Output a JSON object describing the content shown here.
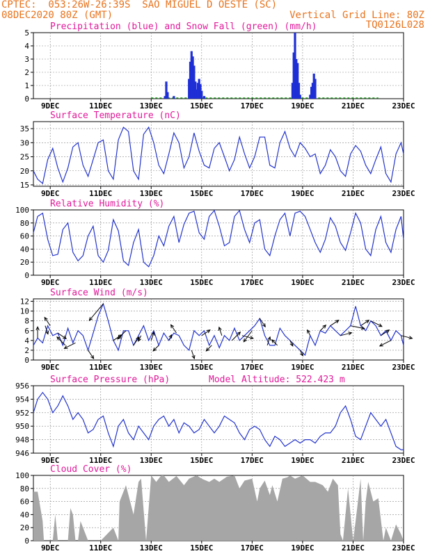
{
  "header": {
    "line1_left": "CPTEC:  053:26W-26:39S  SAO MIGUEL D OESTE (SC)",
    "line2_left": "08DEC2020 80Z (GMT)",
    "line2_right": "Vertical Grid Line: 80Z",
    "code": "TQ0126L028"
  },
  "colors": {
    "header": "#e8731c",
    "title": "#e0199a",
    "line": "#2233cc",
    "precip": "#1f2fd6",
    "snow": "#19a019",
    "cloud": "#a6a6a6",
    "grid": "#888888"
  },
  "x_axis": {
    "start_day": 8.333,
    "end_day": 23.0,
    "tick_days": [
      9,
      11,
      13,
      15,
      17,
      19,
      21,
      23
    ],
    "tick_labels": [
      "9DEC",
      "11DEC",
      "13DEC",
      "15DEC",
      "17DEC",
      "19DEC",
      "21DEC",
      "23DEC"
    ]
  },
  "chart_data": [
    {
      "type": "bar",
      "title": "Precipitation (blue) and Snow Fall (green) (mm/h)",
      "ylim": [
        0,
        5
      ],
      "yticks": [
        "0",
        "1",
        "2",
        "3",
        "4",
        "5"
      ],
      "series": [
        {
          "name": "Precipitation",
          "x": [
            13.55,
            13.6,
            13.65,
            13.9,
            14.5,
            14.55,
            14.6,
            14.65,
            14.7,
            14.75,
            14.8,
            14.85,
            14.9,
            14.95,
            15.0,
            15.1,
            18.6,
            18.65,
            18.7,
            18.75,
            18.8,
            18.85,
            18.9,
            19.3,
            19.35,
            19.4,
            19.45,
            19.5
          ],
          "values": [
            0.2,
            1.3,
            0.5,
            0.2,
            1.5,
            2.8,
            3.6,
            3.2,
            2.5,
            1.3,
            0.7,
            1.2,
            1.5,
            1.1,
            0.6,
            0.2,
            1.2,
            3.5,
            5.0,
            3.0,
            2.7,
            1.2,
            0.3,
            0.3,
            0.9,
            1.2,
            1.9,
            1.5
          ]
        },
        {
          "name": "Snow Fall",
          "values": []
        }
      ]
    },
    {
      "type": "line",
      "title": "Surface Temperature (nC)",
      "ylim": [
        14.5,
        37.5
      ],
      "yticks": [
        "15",
        "20",
        "25",
        "30",
        "35"
      ],
      "series": [
        {
          "name": "",
          "x": [
            8.333,
            8.5,
            8.7,
            8.9,
            9.1,
            9.3,
            9.5,
            9.7,
            9.9,
            10.1,
            10.3,
            10.5,
            10.7,
            10.9,
            11.1,
            11.3,
            11.5,
            11.7,
            11.9,
            12.1,
            12.3,
            12.5,
            12.7,
            12.9,
            13.1,
            13.3,
            13.5,
            13.7,
            13.9,
            14.1,
            14.3,
            14.5,
            14.7,
            14.9,
            15.1,
            15.3,
            15.5,
            15.7,
            15.9,
            16.1,
            16.3,
            16.5,
            16.7,
            16.9,
            17.1,
            17.3,
            17.5,
            17.7,
            17.9,
            18.1,
            18.3,
            18.5,
            18.7,
            18.9,
            19.1,
            19.3,
            19.5,
            19.7,
            19.9,
            20.1,
            20.3,
            20.5,
            20.7,
            20.9,
            21.1,
            21.3,
            21.5,
            21.7,
            21.9,
            22.1,
            22.3,
            22.5,
            22.7,
            22.9,
            23.0
          ],
          "values": [
            20,
            17,
            15.5,
            24,
            28,
            21,
            16,
            21,
            28.5,
            30,
            22,
            18,
            24,
            30,
            31,
            20,
            17,
            31,
            35.5,
            34,
            20,
            17,
            33,
            35.5,
            30,
            22,
            19,
            26,
            33.5,
            30,
            21,
            25,
            33.5,
            27,
            22,
            21,
            28,
            30,
            25,
            20,
            24,
            32,
            26,
            21,
            25,
            32,
            32,
            22,
            21,
            30,
            34,
            28,
            25,
            30,
            28,
            25,
            26,
            19,
            22,
            27.5,
            25,
            20,
            18,
            26,
            29,
            27,
            22,
            19,
            24,
            28.5,
            19,
            16,
            26,
            30,
            26
          ]
        }
      ]
    },
    {
      "type": "line",
      "title": "Relative Humidity (%)",
      "ylim": [
        0,
        100
      ],
      "yticks": [
        "0",
        "20",
        "40",
        "60",
        "80",
        "100"
      ],
      "series": [
        {
          "name": "",
          "x": [
            8.333,
            8.5,
            8.7,
            8.9,
            9.1,
            9.3,
            9.5,
            9.7,
            9.9,
            10.1,
            10.3,
            10.5,
            10.7,
            10.9,
            11.1,
            11.3,
            11.5,
            11.7,
            11.9,
            12.1,
            12.3,
            12.5,
            12.7,
            12.9,
            13.1,
            13.3,
            13.5,
            13.7,
            13.9,
            14.1,
            14.3,
            14.5,
            14.7,
            14.9,
            15.1,
            15.3,
            15.5,
            15.7,
            15.9,
            16.1,
            16.3,
            16.5,
            16.7,
            16.9,
            17.1,
            17.3,
            17.5,
            17.7,
            17.9,
            18.1,
            18.3,
            18.5,
            18.7,
            18.9,
            19.1,
            19.3,
            19.5,
            19.7,
            19.9,
            20.1,
            20.3,
            20.5,
            20.7,
            20.9,
            21.1,
            21.3,
            21.5,
            21.7,
            21.9,
            22.1,
            22.3,
            22.5,
            22.7,
            22.9,
            23.0
          ],
          "values": [
            65,
            90,
            95,
            55,
            30,
            32,
            70,
            80,
            35,
            22,
            30,
            60,
            75,
            30,
            20,
            38,
            85,
            68,
            22,
            15,
            50,
            70,
            20,
            13,
            30,
            60,
            45,
            75,
            90,
            50,
            78,
            95,
            98,
            65,
            55,
            90,
            99,
            75,
            45,
            50,
            90,
            99,
            70,
            50,
            80,
            85,
            40,
            30,
            60,
            85,
            95,
            60,
            95,
            98,
            90,
            70,
            50,
            35,
            55,
            88,
            75,
            50,
            38,
            65,
            95,
            80,
            40,
            30,
            70,
            90,
            50,
            35,
            70,
            90,
            55
          ]
        }
      ]
    },
    {
      "type": "line",
      "title": "Surface Wind (m/s)",
      "ylim": [
        0,
        12.5
      ],
      "yticks": [
        "0",
        "2",
        "4",
        "6",
        "8",
        "10",
        "12"
      ],
      "series": [
        {
          "name": "",
          "x": [
            8.333,
            8.5,
            8.7,
            8.9,
            9.1,
            9.3,
            9.5,
            9.7,
            9.9,
            10.1,
            10.3,
            10.5,
            10.7,
            10.9,
            11.1,
            11.3,
            11.5,
            11.7,
            11.9,
            12.1,
            12.3,
            12.5,
            12.7,
            12.9,
            13.1,
            13.3,
            13.5,
            13.7,
            13.9,
            14.1,
            14.3,
            14.5,
            14.7,
            14.9,
            15.1,
            15.3,
            15.5,
            15.7,
            15.9,
            16.1,
            16.3,
            16.5,
            16.7,
            16.9,
            17.1,
            17.3,
            17.5,
            17.7,
            17.9,
            18.1,
            18.3,
            18.5,
            18.7,
            18.9,
            19.1,
            19.3,
            19.5,
            19.7,
            19.9,
            20.1,
            20.3,
            20.5,
            20.7,
            20.9,
            21.1,
            21.3,
            21.5,
            21.7,
            21.9,
            22.1,
            22.3,
            22.5,
            22.7,
            22.9,
            23.0
          ],
          "values": [
            3,
            4.5,
            3.5,
            7,
            5,
            5.5,
            3,
            6.5,
            3.5,
            6,
            5,
            2,
            5.5,
            9,
            11.5,
            8,
            4,
            2,
            6,
            6,
            3,
            5,
            7,
            4,
            6,
            3,
            5.5,
            4,
            5.5,
            5,
            3,
            2,
            6,
            5,
            6,
            3,
            5,
            2.5,
            5,
            4,
            6.5,
            4,
            5,
            6,
            7,
            8.5,
            5,
            3,
            3,
            6.5,
            5,
            4,
            3,
            2,
            1,
            5,
            3,
            6,
            5.5,
            7,
            6,
            5,
            6,
            7,
            11,
            7,
            6,
            8,
            7,
            5,
            6,
            4,
            6,
            5,
            3
          ]
        }
      ],
      "arrows": {
        "x": [
          8.5,
          8.8,
          9.0,
          9.3,
          9.6,
          10.0,
          10.5,
          11.1,
          11.5,
          12.0,
          12.3,
          12.6,
          13.0,
          13.3,
          13.7,
          14.0,
          14.6,
          15.0,
          15.4,
          15.8,
          16.2,
          16.6,
          17.0,
          17.3,
          17.6,
          18.0,
          18.5,
          18.9,
          19.3,
          19.7,
          20.1,
          20.5,
          20.9,
          21.3,
          21.7,
          22.1,
          22.5,
          22.9
        ],
        "u": [
          0,
          1,
          -2,
          3,
          -3,
          -4,
          2,
          -5,
          3,
          -3,
          2,
          -1,
          1,
          -2,
          1,
          -2,
          1,
          3,
          -2,
          -1,
          3,
          4,
          -3,
          2,
          1,
          -2,
          1,
          1,
          -1,
          2,
          3,
          4,
          5,
          3,
          4,
          3,
          -4,
          4
        ],
        "v": [
          4,
          -3,
          3,
          -2,
          3,
          -2,
          -3,
          -6,
          2,
          -3,
          3,
          -2,
          3,
          -2,
          2,
          3,
          -3,
          2,
          -2,
          3,
          3,
          -1,
          -4,
          -3,
          3,
          2,
          -2,
          -2,
          2,
          2,
          2,
          1,
          -1,
          2,
          -2,
          2,
          -2,
          -1
        ]
      }
    },
    {
      "type": "line",
      "title": "Surface Pressure (hPa)",
      "subtitle": "Model Altitude: 522.423 m",
      "ylim": [
        946,
        956
      ],
      "yticks": [
        "946",
        "948",
        "950",
        "952",
        "954",
        "956"
      ],
      "series": [
        {
          "name": "",
          "x": [
            8.333,
            8.5,
            8.7,
            8.9,
            9.1,
            9.3,
            9.5,
            9.7,
            9.9,
            10.1,
            10.3,
            10.5,
            10.7,
            10.9,
            11.1,
            11.3,
            11.5,
            11.7,
            11.9,
            12.1,
            12.3,
            12.5,
            12.7,
            12.9,
            13.1,
            13.3,
            13.5,
            13.7,
            13.9,
            14.1,
            14.3,
            14.5,
            14.7,
            14.9,
            15.1,
            15.3,
            15.5,
            15.7,
            15.9,
            16.1,
            16.3,
            16.5,
            16.7,
            16.9,
            17.1,
            17.3,
            17.5,
            17.7,
            17.9,
            18.1,
            18.3,
            18.5,
            18.7,
            18.9,
            19.1,
            19.3,
            19.5,
            19.7,
            19.9,
            20.1,
            20.3,
            20.5,
            20.7,
            20.9,
            21.1,
            21.3,
            21.5,
            21.7,
            21.9,
            22.1,
            22.3,
            22.5,
            22.7,
            22.9,
            23.0
          ],
          "values": [
            952,
            954,
            955,
            954,
            952,
            953,
            954.5,
            953,
            951,
            952,
            951,
            949,
            949.5,
            951,
            951.5,
            949,
            947,
            950,
            951,
            949,
            948,
            950,
            949,
            948,
            950,
            951,
            951.5,
            950,
            951,
            949,
            950.5,
            950,
            949,
            949.5,
            951,
            950,
            949,
            950,
            951.5,
            951,
            950.5,
            949,
            948,
            949.5,
            950,
            949.5,
            948,
            947,
            948.5,
            948,
            947,
            947.5,
            948,
            947.5,
            948,
            948,
            947.5,
            948.5,
            949,
            949,
            950,
            952,
            953,
            951,
            948.5,
            948,
            950,
            952,
            951,
            950,
            951,
            949,
            947,
            946.5,
            946.5
          ]
        }
      ]
    },
    {
      "type": "area",
      "title": "Cloud Cover (%)",
      "ylim": [
        0,
        100
      ],
      "yticks": [
        "0",
        "20",
        "40",
        "60",
        "80",
        "100"
      ],
      "series": [
        {
          "name": "",
          "x": [
            8.333,
            8.5,
            8.7,
            8.75,
            9.0,
            9.1,
            9.2,
            9.3,
            9.5,
            9.7,
            9.8,
            9.9,
            10.0,
            10.1,
            10.2,
            10.5,
            10.7,
            11.0,
            11.5,
            11.7,
            11.75,
            11.9,
            12.0,
            12.3,
            12.5,
            12.6,
            12.8,
            13.0,
            13.2,
            13.4,
            13.5,
            13.7,
            14.0,
            14.3,
            14.5,
            14.8,
            15.0,
            15.3,
            15.5,
            15.7,
            16.0,
            16.3,
            16.5,
            16.7,
            17.0,
            17.2,
            17.3,
            17.5,
            17.7,
            17.8,
            18.0,
            18.2,
            18.4,
            18.5,
            18.7,
            19.0,
            19.3,
            19.5,
            19.8,
            20.0,
            20.2,
            20.4,
            20.5,
            20.6,
            20.8,
            21.0,
            21.1,
            21.3,
            21.4,
            21.5,
            21.6,
            21.8,
            22.0,
            22.2,
            22.3,
            22.5,
            22.7,
            22.9,
            23.0
          ],
          "values": [
            75,
            75,
            30,
            0,
            0,
            0,
            40,
            0,
            0,
            0,
            50,
            40,
            0,
            0,
            30,
            0,
            0,
            0,
            20,
            0,
            60,
            75,
            85,
            40,
            90,
            95,
            0,
            100,
            90,
            100,
            100,
            90,
            99,
            85,
            95,
            100,
            95,
            90,
            95,
            90,
            98,
            100,
            80,
            92,
            95,
            60,
            80,
            92,
            70,
            85,
            60,
            95,
            97,
            100,
            95,
            100,
            90,
            90,
            85,
            75,
            95,
            85,
            10,
            0,
            80,
            0,
            30,
            95,
            0,
            60,
            90,
            60,
            65,
            0,
            20,
            0,
            25,
            10,
            0
          ]
        }
      ]
    }
  ]
}
